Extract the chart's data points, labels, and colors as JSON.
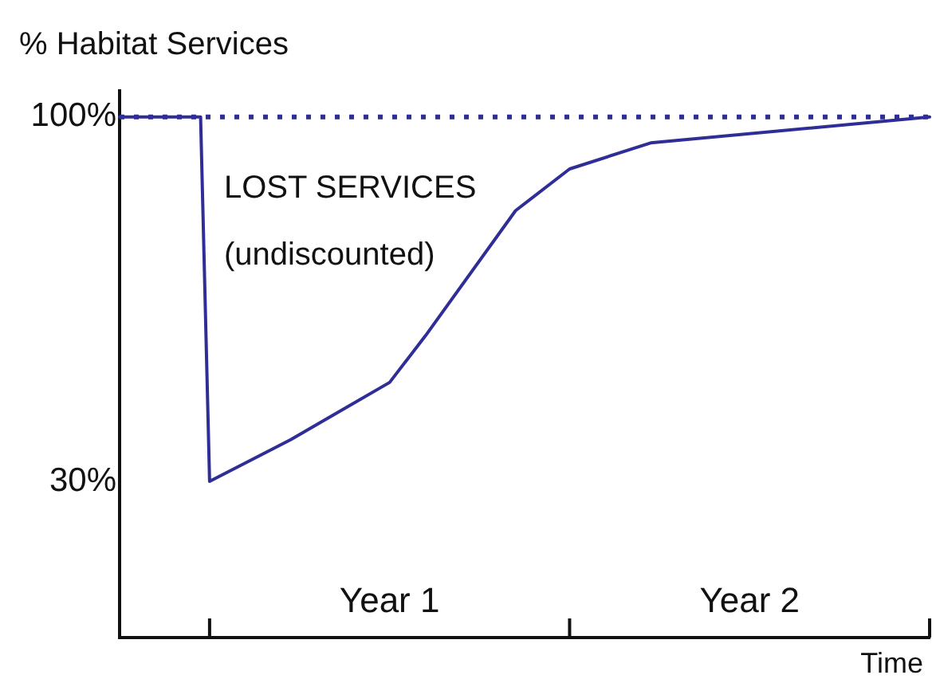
{
  "chart_data": {
    "type": "line",
    "ylabel": "% Habitat Services",
    "xlabel": "Time",
    "categories": [
      null,
      null,
      null,
      null,
      null,
      null,
      null,
      null,
      null,
      null,
      null,
      null,
      null,
      null,
      null,
      null,
      null,
      null,
      null,
      null,
      null,
      null,
      null,
      null,
      null,
      null,
      null,
      null,
      null,
      null,
      "Year 1",
      null,
      null,
      null,
      null,
      null,
      null,
      null,
      null,
      null,
      null,
      null,
      null,
      null,
      null,
      null,
      null,
      null,
      null,
      null,
      null,
      null,
      null,
      null,
      null,
      null,
      null,
      null,
      null,
      null,
      null,
      null,
      null,
      null,
      null,
      null,
      null,
      null,
      null,
      null,
      "Year 2",
      null,
      null,
      null,
      null,
      null,
      null,
      null,
      null,
      null,
      null,
      null,
      null,
      null,
      null,
      null,
      null,
      null,
      null,
      null,
      null
    ],
    "series": [
      {
        "color": "#2e2e96",
        "values": [
          100,
          null,
          null,
          null,
          null,
          null,
          null,
          null,
          null,
          100,
          30,
          null,
          null,
          null,
          null,
          null,
          null,
          null,
          null,
          38,
          null,
          null,
          null,
          null,
          null,
          null,
          null,
          null,
          null,
          null,
          49,
          null,
          null,
          null,
          58,
          null,
          null,
          null,
          null,
          null,
          null,
          null,
          null,
          null,
          82,
          null,
          null,
          null,
          null,
          null,
          90,
          null,
          null,
          null,
          null,
          null,
          null,
          null,
          null,
          95,
          null,
          null,
          null,
          null,
          null,
          null,
          null,
          null,
          null,
          null,
          null,
          null,
          null,
          null,
          null,
          null,
          null,
          null,
          null,
          null,
          null,
          null,
          null,
          null,
          null,
          null,
          null,
          null,
          null,
          null,
          100
        ]
      }
    ],
    "ylim": [
      0,
      105
    ],
    "yticks": [
      {
        "value": 100,
        "label": "100%"
      },
      {
        "value": 30,
        "label": "30%"
      }
    ],
    "ref_lines": [
      {
        "axis": "y",
        "value": 100,
        "color": "#2e2e96",
        "line_style": "dotted"
      }
    ],
    "annotations": [
      "LOST SERVICES",
      "(undiscounted)"
    ],
    "grid": false,
    "legend": false,
    "marker": "none",
    "line_style": "solid"
  }
}
